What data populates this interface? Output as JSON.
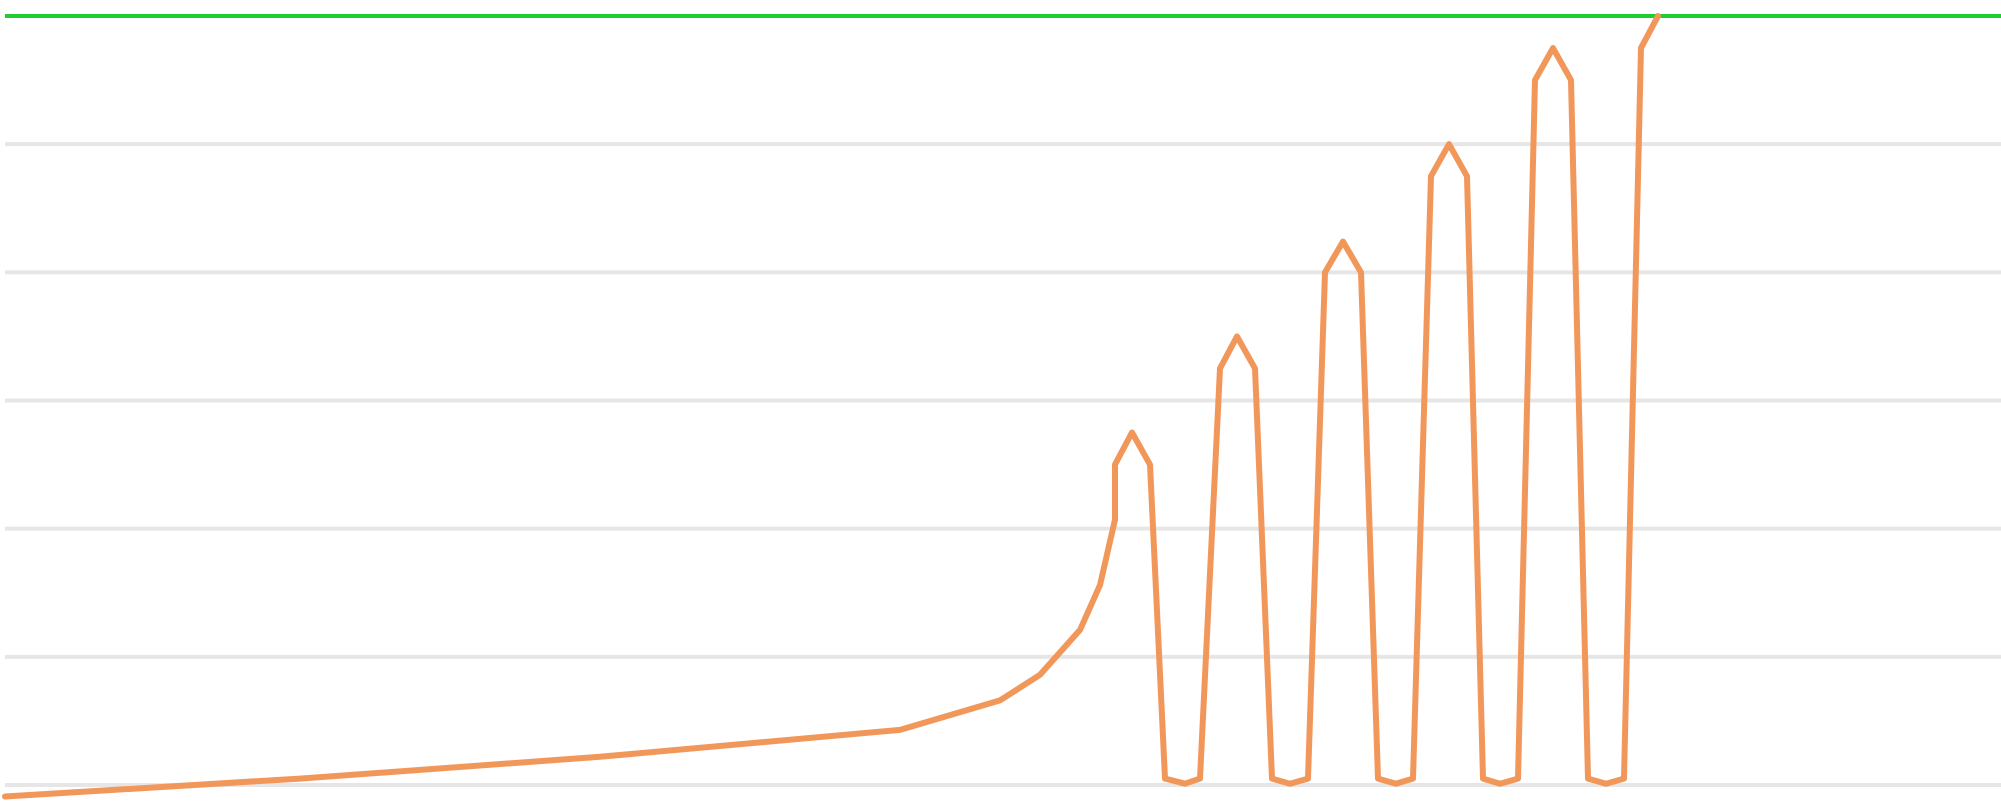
{
  "chart_data": {
    "type": "line",
    "x": [
      5,
      300,
      600,
      900,
      1000,
      1040,
      1080,
      1100,
      1115,
      1115,
      1132,
      1150,
      1165,
      1185,
      1200,
      1220,
      1237,
      1255,
      1272,
      1290,
      1308,
      1325,
      1343,
      1361,
      1378,
      1396,
      1413,
      1431,
      1449,
      1467,
      1483,
      1500,
      1518,
      1535,
      1553,
      1571,
      1588,
      1606,
      1624,
      1641,
      1658
    ],
    "values": [
      -0.09,
      0.05,
      0.22,
      0.43,
      0.66,
      0.86,
      1.21,
      1.56,
      2.07,
      2.5,
      2.75,
      2.5,
      0.05,
      0.01,
      0.05,
      3.25,
      3.5,
      3.25,
      0.05,
      0.01,
      0.05,
      4.0,
      4.24,
      4.0,
      0.05,
      0.01,
      0.05,
      4.75,
      5.0,
      4.75,
      0.05,
      0.01,
      0.05,
      5.5,
      5.75,
      5.5,
      0.05,
      0.01,
      0.05,
      5.75,
      6.0
    ],
    "color": "#f2975a",
    "xlim": [
      0,
      2001
    ],
    "ylim": [
      -0.1,
      6
    ],
    "yticks": [
      0,
      1,
      2,
      3,
      4,
      5
    ],
    "grid": true,
    "reference_line": {
      "value": 6,
      "color": "#1fcc33"
    }
  }
}
